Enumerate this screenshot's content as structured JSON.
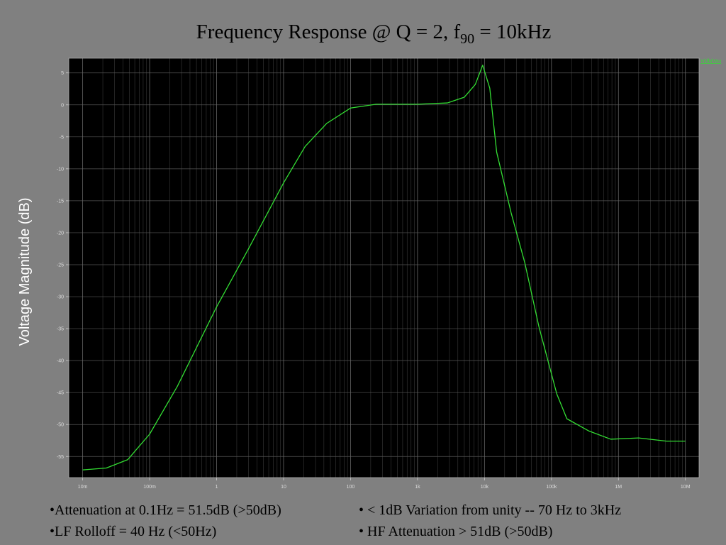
{
  "chart_data": {
    "type": "line",
    "title": "Frequency Response @ Q = 2, f",
    "title_subscript": "90",
    "title_suffix": " = 10kHz",
    "y_label": "Voltage Magnitude (dB)",
    "annotations": [
      "•Attenuation at 0.1Hz = 51.5dB (>50dB)",
      "•LF Rolloff = 40 Hz (<50Hz)",
      "• < 1dB Variation from unity -- 70 Hz to 3kHz",
      "• HF Attenuation > 51dB (>50dB)"
    ],
    "log_x": true,
    "grid": true,
    "x": [
      0.01,
      0.0226,
      0.047,
      0.1,
      0.26,
      1,
      3,
      10,
      21,
      44,
      100,
      240,
      1000,
      2800,
      5000,
      7300,
      9400,
      12000,
      15200,
      25000,
      40000,
      65000,
      120000,
      170000,
      360000,
      770000,
      2000000,
      5200000,
      10000000
    ],
    "series": [
      {
        "name": "V(db(Vou",
        "color": "#33dd33",
        "values": [
          -57.1,
          -56.8,
          -55.5,
          -51.5,
          -44,
          -31.6,
          -22.5,
          -12.2,
          -6.5,
          -2.9,
          -0.5,
          0.1,
          0.1,
          0.3,
          1.2,
          3.2,
          6.2,
          2.6,
          -7.4,
          -16.9,
          -24.7,
          -34.7,
          -45.2,
          -49.1,
          -51,
          -52.3,
          -52.1,
          -52.6,
          -52.6
        ]
      }
    ],
    "xlim": [
      0.0062,
      16000000
    ],
    "ylim": [
      -58.3,
      7.3
    ],
    "xticks": [
      {
        "value": 0.01,
        "label": "10m"
      },
      {
        "value": 0.1,
        "label": "100m"
      },
      1,
      10,
      100,
      {
        "value": 1000,
        "label": "1k"
      },
      {
        "value": 10000,
        "label": "10k"
      },
      {
        "value": 100000,
        "label": "100k"
      },
      {
        "value": 1000000,
        "label": "1M"
      },
      {
        "value": 10000000,
        "label": "10M"
      }
    ],
    "yticks": [
      -55,
      -50,
      -45,
      -40,
      -35,
      -30,
      -25,
      -20,
      -15,
      -10,
      -5,
      0,
      5
    ]
  }
}
